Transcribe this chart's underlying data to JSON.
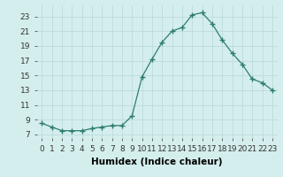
{
  "x": [
    0,
    1,
    2,
    3,
    4,
    5,
    6,
    7,
    8,
    9,
    10,
    11,
    12,
    13,
    14,
    15,
    16,
    17,
    18,
    19,
    20,
    21,
    22,
    23
  ],
  "y": [
    8.5,
    8.0,
    7.5,
    7.5,
    7.5,
    7.8,
    8.0,
    8.2,
    8.2,
    9.5,
    14.8,
    17.2,
    19.5,
    21.0,
    21.5,
    23.2,
    23.5,
    22.0,
    19.8,
    18.0,
    16.5,
    14.5,
    14.0,
    13.0
  ],
  "line_color": "#2d7d6e",
  "marker": "+",
  "marker_size": 4,
  "marker_linewidth": 1.0,
  "linewidth": 0.9,
  "xlabel": "Humidex (Indice chaleur)",
  "xlim": [
    -0.5,
    23.5
  ],
  "ylim": [
    6.5,
    24.5
  ],
  "yticks": [
    7,
    9,
    11,
    13,
    15,
    17,
    19,
    21,
    23
  ],
  "ytick_labels": [
    "7",
    "9",
    "11",
    "13",
    "15",
    "17",
    "19",
    "21",
    "23"
  ],
  "xticks": [
    0,
    1,
    2,
    3,
    4,
    5,
    6,
    7,
    8,
    9,
    10,
    11,
    12,
    13,
    14,
    15,
    16,
    17,
    18,
    19,
    20,
    21,
    22,
    23
  ],
  "xtick_labels": [
    "0",
    "1",
    "2",
    "3",
    "4",
    "5",
    "6",
    "7",
    "8",
    "9",
    "10",
    "11",
    "12",
    "13",
    "14",
    "15",
    "16",
    "17",
    "18",
    "19",
    "20",
    "21",
    "22",
    "23"
  ],
  "bg_color": "#d4eeed",
  "grid_color": "#b8d8d5",
  "font_size": 6.5,
  "xlabel_fontsize": 7.5
}
